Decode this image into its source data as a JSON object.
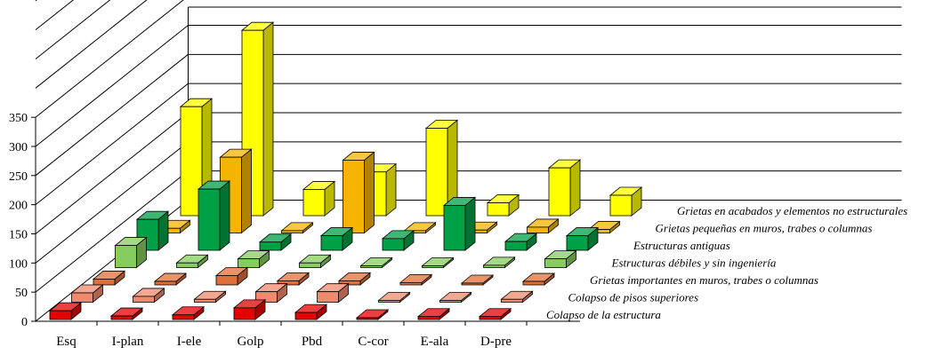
{
  "chart_data": {
    "type": "bar",
    "subtype": "3d-column",
    "categories": [
      "Esq",
      "I-plan",
      "I-ele",
      "Golp",
      "Pbd",
      "C-cor",
      "E-ala",
      "D-pre"
    ],
    "yticks": [
      "0",
      "50",
      "100",
      "150",
      "200",
      "250",
      "300",
      "350"
    ],
    "ylim": [
      0,
      350
    ],
    "series": [
      {
        "name": "Colapso de la estructura",
        "color": "#e60000",
        "values": [
          15,
          6,
          8,
          20,
          12,
          3,
          5,
          5
        ]
      },
      {
        "name": "Colapso de pisos superiores",
        "color": "#f08a6c",
        "values": [
          16,
          10,
          5,
          18,
          18,
          3,
          2,
          5
        ]
      },
      {
        "name": "Grietas importantes en muros, trabes o columnas",
        "color": "#e0703a",
        "values": [
          10,
          6,
          16,
          7,
          7,
          4,
          3,
          6
        ]
      },
      {
        "name": "Estructuras débiles y sin ingeniería",
        "color": "#86cc5e",
        "values": [
          38,
          8,
          15,
          8,
          2,
          2,
          4,
          15
        ]
      },
      {
        "name": "Estructuras antiguas",
        "color": "#00a047",
        "values": [
          53,
          105,
          14,
          25,
          20,
          77,
          15,
          25
        ]
      },
      {
        "name": "Grietas pequeñas en muros, trabes o columnas",
        "color": "#f5b400",
        "values": [
          8,
          130,
          4,
          125,
          4,
          5,
          10,
          6
        ]
      },
      {
        "name": "Grietas en acabados y elementos no estructurales",
        "color": "#ffff00",
        "values": [
          187,
          318,
          45,
          75,
          150,
          22,
          82,
          35
        ]
      }
    ]
  }
}
